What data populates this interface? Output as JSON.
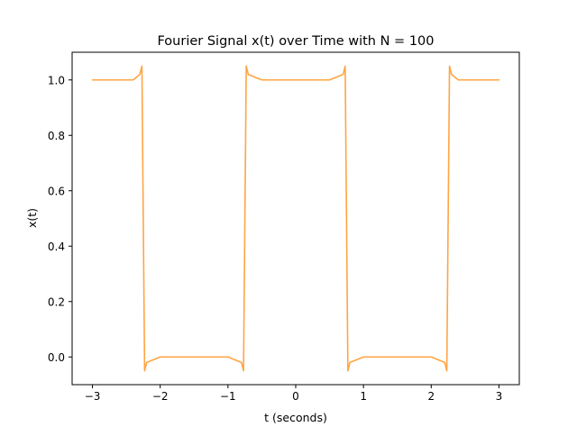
{
  "chart_data": {
    "type": "line",
    "title": "Fourier Signal x(t) over Time with N = 100",
    "xlabel": "t (seconds)",
    "ylabel": "x(t)",
    "xlim": [
      -3.3,
      3.3
    ],
    "ylim": [
      -0.1,
      1.1
    ],
    "xticks": [
      -3,
      -2,
      -1,
      0,
      1,
      2,
      3
    ],
    "xtick_labels": [
      "−3",
      "−2",
      "−1",
      "0",
      "1",
      "2",
      "3"
    ],
    "yticks": [
      0.0,
      0.2,
      0.4,
      0.6,
      0.8,
      1.0
    ],
    "ytick_labels": [
      "0.0",
      "0.2",
      "0.4",
      "0.6",
      "0.8",
      "1.0"
    ],
    "grid": false,
    "legend": "none",
    "series": [
      {
        "color": "#ffa544",
        "x": [
          -3.0,
          -2.5,
          -2.4,
          -2.3,
          -2.27,
          -2.25,
          -2.23,
          -2.2,
          -2.0,
          -1.5,
          -1.0,
          -0.8,
          -0.77,
          -0.75,
          -0.73,
          -0.7,
          -0.5,
          0.0,
          0.5,
          0.7,
          0.73,
          0.75,
          0.77,
          0.8,
          1.0,
          1.5,
          2.0,
          2.2,
          2.23,
          2.25,
          2.27,
          2.3,
          2.4,
          2.5,
          3.0
        ],
        "y": [
          1.0,
          1.0,
          1.0,
          1.02,
          1.05,
          0.5,
          -0.05,
          -0.02,
          0.0,
          0.0,
          0.0,
          -0.02,
          -0.05,
          0.5,
          1.05,
          1.02,
          1.0,
          1.0,
          1.0,
          1.02,
          1.05,
          0.5,
          -0.05,
          -0.02,
          0.0,
          0.0,
          0.0,
          -0.02,
          -0.05,
          0.5,
          1.05,
          1.02,
          1.0,
          1.0,
          1.0
        ]
      }
    ]
  }
}
